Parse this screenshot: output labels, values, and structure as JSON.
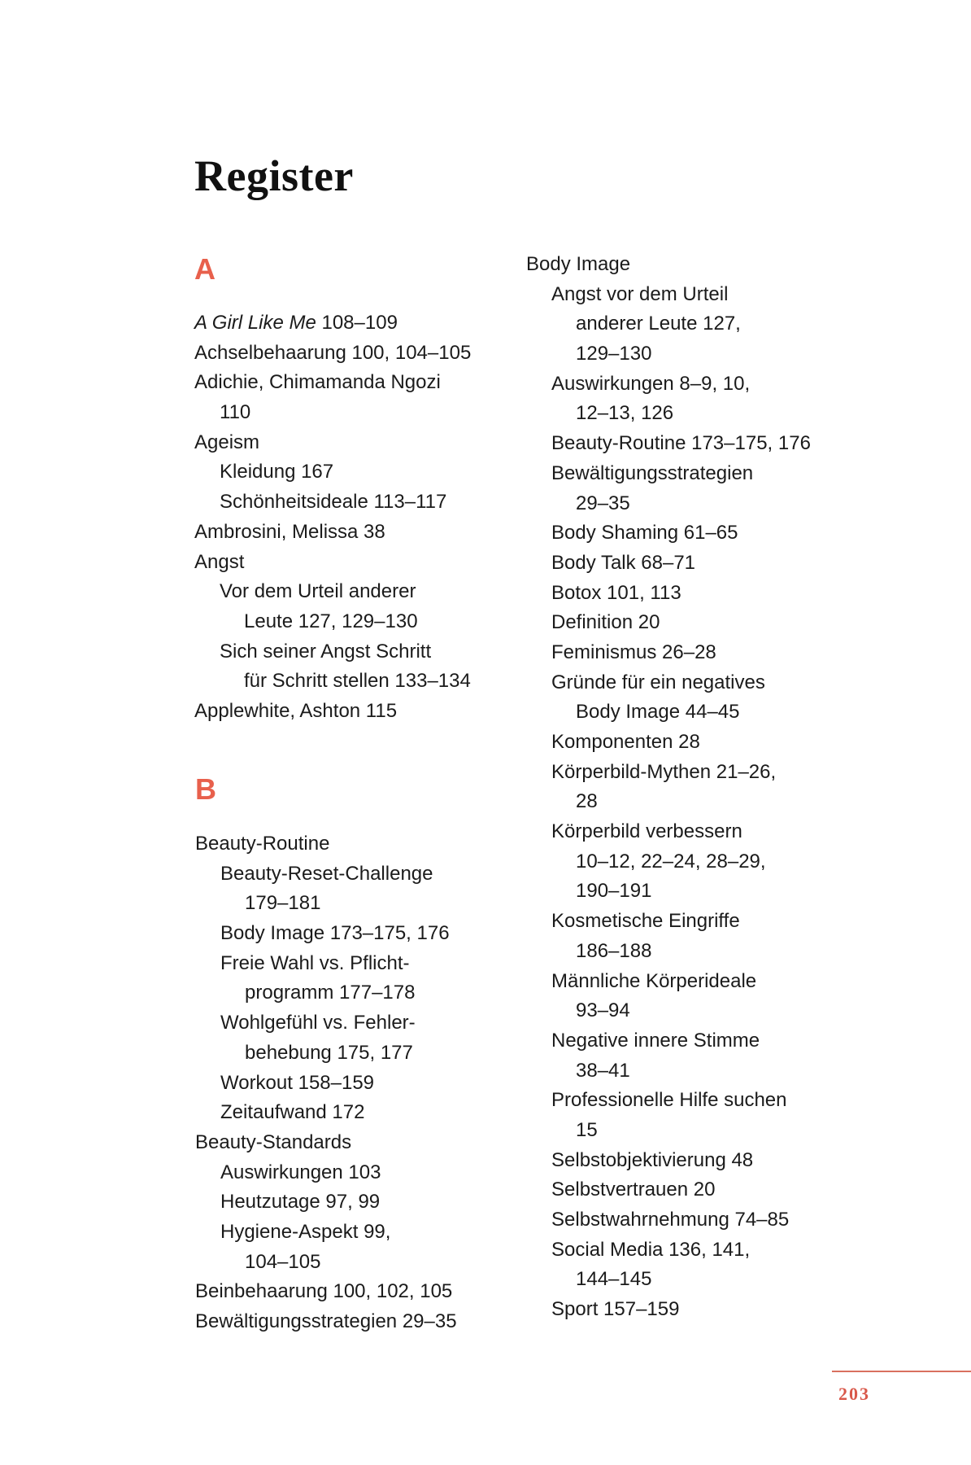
{
  "title": "Register",
  "accent_color": "#e8604c",
  "page_number": "203",
  "sections": {
    "a": {
      "letter": "A",
      "lines": [
        {
          "italic": "A Girl Like Me",
          "t": " 108–109",
          "i": 0
        },
        {
          "t": "Achselbehaarung 100, 104–105",
          "i": 0
        },
        {
          "t": "Adichie, Chimamanda Ngozi",
          "i": 0
        },
        {
          "t": "110",
          "i": 1
        },
        {
          "t": "Ageism",
          "i": 0
        },
        {
          "t": "Kleidung 167",
          "i": 1
        },
        {
          "t": "Schönheitsideale 113–117",
          "i": 1
        },
        {
          "t": "Ambrosini, Melissa 38",
          "i": 0
        },
        {
          "t": "Angst",
          "i": 0
        },
        {
          "t": "Vor dem Urteil anderer",
          "i": 1
        },
        {
          "t": "Leute 127, 129–130",
          "i": 2
        },
        {
          "t": "Sich seiner Angst Schritt",
          "i": 1
        },
        {
          "t": "für Schritt stellen 133–134",
          "i": 2
        },
        {
          "t": "Applewhite, Ashton 115",
          "i": 0
        }
      ]
    },
    "b": {
      "letter": "B",
      "lines": [
        {
          "t": "Beauty-Routine",
          "i": 0
        },
        {
          "t": "Beauty-Reset-Challenge",
          "i": 1
        },
        {
          "t": "179–181",
          "i": 2
        },
        {
          "t": "Body Image 173–175, 176",
          "i": 1
        },
        {
          "t": "Freie Wahl vs. Pflicht-",
          "i": 1
        },
        {
          "t": "programm 177–178",
          "i": 2
        },
        {
          "t": "Wohlgefühl vs. Fehler-",
          "i": 1
        },
        {
          "t": "behebung 175, 177",
          "i": 2
        },
        {
          "t": "Workout 158–159",
          "i": 1
        },
        {
          "t": "Zeitaufwand 172",
          "i": 1
        },
        {
          "t": "Beauty-Standards",
          "i": 0
        },
        {
          "t": "Auswirkungen 103",
          "i": 1
        },
        {
          "t": "Heutzutage 97, 99",
          "i": 1
        },
        {
          "t": "Hygiene-Aspekt 99,",
          "i": 1
        },
        {
          "t": "104–105",
          "i": 2
        },
        {
          "t": "Beinbehaarung 100, 102, 105",
          "i": 0
        },
        {
          "t": "Bewältigungsstrategien 29–35",
          "i": 0
        }
      ]
    },
    "right": {
      "lines": [
        {
          "t": "Body Image",
          "i": 0
        },
        {
          "t": "Angst vor dem Urteil",
          "i": 1
        },
        {
          "t": "anderer Leute 127,",
          "i": 2
        },
        {
          "t": "129–130",
          "i": 2
        },
        {
          "t": "Auswirkungen 8–9, 10,",
          "i": 1
        },
        {
          "t": "12–13, 126",
          "i": 2
        },
        {
          "t": "Beauty-Routine 173–175, 176",
          "i": 1
        },
        {
          "t": "Bewältigungsstrategien",
          "i": 1
        },
        {
          "t": "29–35",
          "i": 2
        },
        {
          "t": "Body Shaming 61–65",
          "i": 1
        },
        {
          "t": "Body Talk 68–71",
          "i": 1
        },
        {
          "t": "Botox 101, 113",
          "i": 1
        },
        {
          "t": "Definition 20",
          "i": 1
        },
        {
          "t": "Feminismus 26–28",
          "i": 1
        },
        {
          "t": "Gründe für ein negatives",
          "i": 1
        },
        {
          "t": "Body Image 44–45",
          "i": 2
        },
        {
          "t": "Komponenten 28",
          "i": 1
        },
        {
          "t": "Körperbild-Mythen 21–26,",
          "i": 1
        },
        {
          "t": "28",
          "i": 2
        },
        {
          "t": "Körperbild verbessern",
          "i": 1
        },
        {
          "t": "10–12, 22–24, 28–29,",
          "i": 2
        },
        {
          "t": "190–191",
          "i": 2
        },
        {
          "t": "Kosmetische Eingriffe",
          "i": 1
        },
        {
          "t": "186–188",
          "i": 2
        },
        {
          "t": "Männliche Körperideale",
          "i": 1
        },
        {
          "t": "93–94",
          "i": 2
        },
        {
          "t": "Negative innere Stimme",
          "i": 1
        },
        {
          "t": "38–41",
          "i": 2
        },
        {
          "t": "Professionelle Hilfe suchen",
          "i": 1
        },
        {
          "t": "15",
          "i": 2
        },
        {
          "t": "Selbstobjektivierung 48",
          "i": 1
        },
        {
          "t": "Selbstvertrauen 20",
          "i": 1
        },
        {
          "t": "Selbstwahrnehmung 74–85",
          "i": 1
        },
        {
          "t": "Social Media 136, 141,",
          "i": 1
        },
        {
          "t": "144–145",
          "i": 2
        },
        {
          "t": "Sport 157–159",
          "i": 1
        }
      ]
    }
  }
}
